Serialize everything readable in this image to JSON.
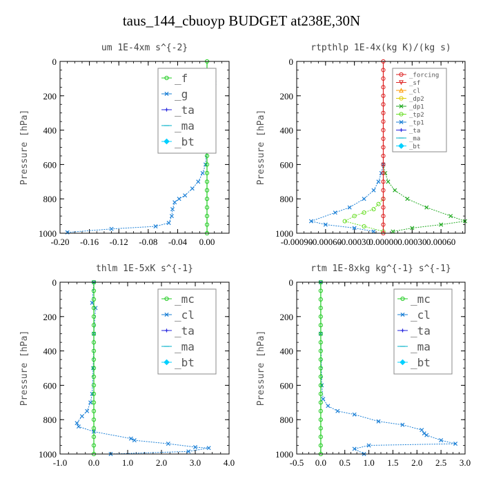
{
  "figure": {
    "title": "taus_144_cbuoyp  BUDGET at238E,30N"
  },
  "chart_data": [
    {
      "type": "line",
      "title": "um  1E-4xm s^{-2}",
      "ylabel": "Pressure [hPa]",
      "xlim": [
        -0.2,
        0.03
      ],
      "ylim": [
        1000,
        0
      ],
      "xticks": [
        -0.2,
        -0.16,
        -0.12,
        -0.08,
        -0.04,
        0.0
      ],
      "xticklabels": [
        "-0.20",
        "-0.16",
        "-0.12",
        "-0.08",
        "-0.04",
        "0.00"
      ],
      "yticks": [
        0,
        200,
        400,
        600,
        800,
        1000
      ],
      "legend": {
        "position": "top-right",
        "entries": [
          {
            "label": "_f",
            "color": "#22cc22",
            "marker": "o"
          },
          {
            "label": "_g",
            "color": "#1a7fd6",
            "marker": "x"
          },
          {
            "label": "_ta",
            "color": "#2222dd",
            "marker": "+"
          },
          {
            "label": "_ma",
            "color": "#00b0c8",
            "marker": "-"
          },
          {
            "label": "_bt",
            "color": "#00d0ff",
            "marker": "diamond"
          }
        ]
      },
      "series": [
        {
          "name": "_g",
          "color": "#1a7fd6",
          "x": [
            0.0,
            0.002,
            0.006,
            -0.004,
            0.01,
            0.004,
            0.003,
            0.002,
            0.001,
            0.0,
            -0.002,
            -0.006,
            -0.012,
            -0.02,
            -0.03,
            -0.038,
            -0.044,
            -0.047,
            -0.048,
            -0.052,
            -0.07,
            -0.13,
            -0.19
          ],
          "y": [
            60,
            100,
            120,
            130,
            125,
            160,
            200,
            300,
            400,
            500,
            600,
            650,
            700,
            740,
            780,
            800,
            820,
            860,
            900,
            940,
            960,
            975,
            995
          ]
        },
        {
          "name": "_f",
          "color": "#22cc22",
          "x": [
            0,
            0,
            0,
            0,
            0,
            0,
            0,
            0,
            0,
            0,
            0,
            0,
            0,
            0,
            0,
            0,
            0,
            0,
            0,
            0,
            0
          ],
          "y": [
            0,
            50,
            100,
            150,
            200,
            250,
            300,
            350,
            400,
            450,
            500,
            550,
            600,
            650,
            700,
            750,
            800,
            850,
            900,
            950,
            1000
          ]
        }
      ]
    },
    {
      "type": "line",
      "title": "rtpthlp  1E-4x(kg K)/(kg s)",
      "ylabel": "Pressure [hPa]",
      "xlim": [
        -0.0009,
        0.00085
      ],
      "ylim": [
        1000,
        0
      ],
      "xticks": [
        -0.0009,
        -0.0006,
        -0.0003,
        0.0,
        0.0003,
        0.0006
      ],
      "xticklabels": [
        "-0.00090",
        "-0.00060",
        "-0.00030",
        "0.00000",
        "0.00030",
        "0.00060"
      ],
      "yticks": [
        0,
        200,
        400,
        600,
        800,
        1000
      ],
      "legend": {
        "position": "top-right",
        "entries": [
          {
            "label": "_forcing",
            "color": "#dd2222",
            "marker": "o"
          },
          {
            "label": "_sf",
            "color": "#dd2222",
            "marker": "v"
          },
          {
            "label": "_cl",
            "color": "#ff9900",
            "marker": "^"
          },
          {
            "label": "_dp2",
            "color": "#ddcc00",
            "marker": "o"
          },
          {
            "label": "_dp1",
            "color": "#22aa22",
            "marker": "x"
          },
          {
            "label": "_tp2",
            "color": "#66dd22",
            "marker": "o"
          },
          {
            "label": "_tp1",
            "color": "#1a7fd6",
            "marker": "x"
          },
          {
            "label": "_ta",
            "color": "#2222dd",
            "marker": "+"
          },
          {
            "label": "_ma",
            "color": "#00b0c8",
            "marker": "-"
          },
          {
            "label": "_bt",
            "color": "#00d0ff",
            "marker": "diamond"
          }
        ]
      },
      "series": [
        {
          "name": "_dp1",
          "color": "#22aa22",
          "x": [
            0.0,
            2e-05,
            5e-05,
            0.00012,
            0.00025,
            0.00045,
            0.0007,
            0.00085,
            0.0006,
            0.0003,
            0.0001
          ],
          "y": [
            600,
            650,
            700,
            750,
            800,
            850,
            900,
            930,
            950,
            970,
            990
          ]
        },
        {
          "name": "_tp1",
          "color": "#1a7fd6",
          "x": [
            0.0,
            -2e-05,
            -5e-05,
            -0.0001,
            -0.0002,
            -0.00035,
            -0.0005,
            -0.00075,
            -0.0006,
            -0.0003,
            -0.0001
          ],
          "y": [
            600,
            650,
            700,
            750,
            800,
            850,
            880,
            930,
            950,
            970,
            990
          ]
        },
        {
          "name": "_tp2",
          "color": "#66dd22",
          "x": [
            0.0,
            -5e-05,
            -0.0001,
            -0.0002,
            -0.0003,
            -0.0004,
            -0.0002,
            0.0
          ],
          "y": [
            800,
            830,
            860,
            880,
            900,
            930,
            960,
            990
          ]
        },
        {
          "name": "_forcing",
          "color": "#dd2222",
          "x": [
            0,
            0,
            0,
            0,
            0,
            0,
            0,
            0,
            0,
            0,
            0,
            0,
            0,
            0,
            0,
            0,
            0,
            0,
            0,
            0,
            0
          ],
          "y": [
            0,
            50,
            100,
            150,
            200,
            250,
            300,
            350,
            400,
            450,
            500,
            550,
            600,
            650,
            700,
            750,
            800,
            850,
            900,
            950,
            1000
          ]
        }
      ]
    },
    {
      "type": "line",
      "title": "thlm  1E-5xK s^{-1}",
      "ylabel": "Pressure [hPa]",
      "xlim": [
        -1.0,
        4.0
      ],
      "ylim": [
        1000,
        0
      ],
      "xticks": [
        -1.0,
        0.0,
        1.0,
        2.0,
        3.0,
        4.0
      ],
      "xticklabels": [
        "-1.0",
        "0.0",
        "1.0",
        "2.0",
        "3.0",
        "4.0"
      ],
      "yticks": [
        0,
        200,
        400,
        600,
        800,
        1000
      ],
      "legend": {
        "position": "top-right",
        "entries": [
          {
            "label": "_mc",
            "color": "#22cc22",
            "marker": "o"
          },
          {
            "label": "_cl",
            "color": "#1a7fd6",
            "marker": "x"
          },
          {
            "label": "_ta",
            "color": "#2222dd",
            "marker": "+"
          },
          {
            "label": "_ma",
            "color": "#00b0c8",
            "marker": "-"
          },
          {
            "label": "_bt",
            "color": "#00d0ff",
            "marker": "diamond"
          }
        ]
      },
      "series": [
        {
          "name": "_cl",
          "color": "#1a7fd6",
          "x": [
            0.0,
            -0.05,
            0.05,
            0.0,
            -0.02,
            -0.05,
            -0.1,
            -0.2,
            -0.35,
            -0.5,
            -0.45,
            0.0,
            1.1,
            1.2,
            2.2,
            3.0,
            3.4,
            2.8,
            0.5
          ],
          "y": [
            0,
            120,
            150,
            300,
            500,
            650,
            700,
            750,
            780,
            820,
            840,
            870,
            910,
            920,
            940,
            960,
            965,
            985,
            1000
          ]
        },
        {
          "name": "_mc",
          "color": "#22cc22",
          "x": [
            0,
            0,
            0,
            0,
            0,
            0,
            0,
            0,
            0,
            0,
            0,
            0,
            0,
            0,
            0,
            0,
            0,
            0,
            0,
            0,
            0
          ],
          "y": [
            0,
            50,
            100,
            150,
            200,
            250,
            300,
            350,
            400,
            450,
            500,
            550,
            600,
            650,
            700,
            750,
            800,
            850,
            900,
            950,
            1000
          ]
        }
      ]
    },
    {
      "type": "line",
      "title": "rtm  1E-8xkg kg^{-1} s^{-1}",
      "ylabel": "Pressure [hPa]",
      "xlim": [
        -0.5,
        3.0
      ],
      "ylim": [
        1000,
        0
      ],
      "xticks": [
        -0.5,
        0.0,
        0.5,
        1.0,
        1.5,
        2.0,
        2.5,
        3.0
      ],
      "xticklabels": [
        "-0.5",
        "0.0",
        "0.5",
        "1.0",
        "1.5",
        "2.0",
        "2.5",
        "3.0"
      ],
      "yticks": [
        0,
        200,
        400,
        600,
        800,
        1000
      ],
      "legend": {
        "position": "top-right",
        "entries": [
          {
            "label": "_mc",
            "color": "#22cc22",
            "marker": "o"
          },
          {
            "label": "_cl",
            "color": "#1a7fd6",
            "marker": "x"
          },
          {
            "label": "_ta",
            "color": "#2222dd",
            "marker": "+"
          },
          {
            "label": "_ma",
            "color": "#00b0c8",
            "marker": "-"
          },
          {
            "label": "_bt",
            "color": "#00d0ff",
            "marker": "diamond"
          }
        ]
      },
      "series": [
        {
          "name": "_cl",
          "color": "#1a7fd6",
          "x": [
            0.0,
            0.0,
            0.02,
            0.05,
            0.15,
            0.35,
            0.7,
            1.2,
            1.7,
            2.1,
            2.15,
            2.2,
            2.5,
            2.8,
            1.0,
            0.7,
            0.9
          ],
          "y": [
            0,
            300,
            600,
            680,
            720,
            750,
            770,
            810,
            830,
            860,
            880,
            890,
            920,
            940,
            950,
            970,
            1000
          ]
        },
        {
          "name": "_mc",
          "color": "#22cc22",
          "x": [
            0,
            0,
            0,
            0,
            0,
            0,
            0,
            0,
            0,
            0,
            0,
            0,
            0,
            0,
            0,
            0,
            0,
            0,
            0,
            0,
            0
          ],
          "y": [
            0,
            50,
            100,
            150,
            200,
            250,
            300,
            350,
            400,
            450,
            500,
            550,
            600,
            650,
            700,
            750,
            800,
            850,
            900,
            950,
            1000
          ]
        }
      ]
    }
  ]
}
